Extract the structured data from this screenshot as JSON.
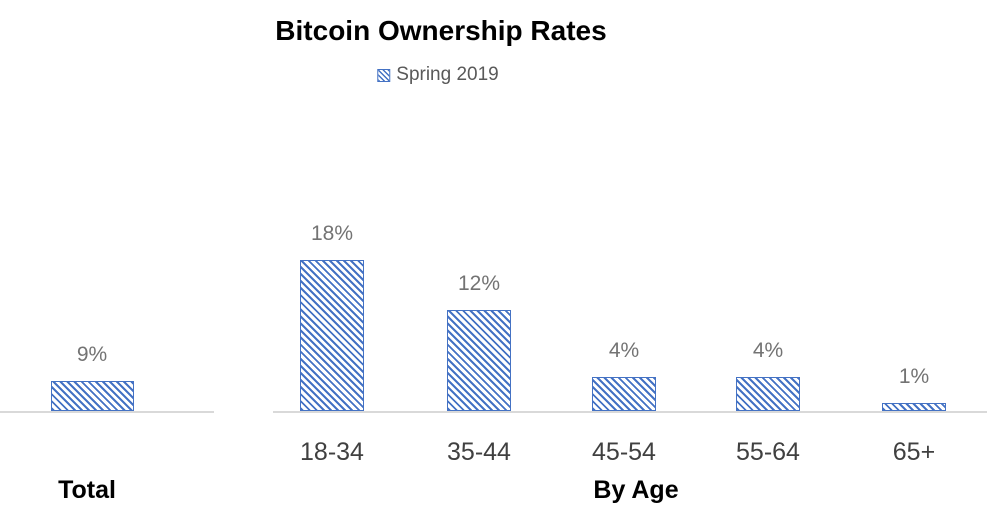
{
  "title": "Bitcoin Ownership Rates",
  "legend": {
    "label": "Spring 2019"
  },
  "chart_data": {
    "type": "bar",
    "title": "Bitcoin Ownership Rates",
    "legend_entries": [
      "Spring 2019"
    ],
    "legend_position": "top-center",
    "unit": "%",
    "bar_fill_style": "diagonal-hatch-downward",
    "y_axis_visible": false,
    "grid": false,
    "colors": {
      "bar": "#4472C4",
      "axis_line": "#D9D9D9",
      "data_label": "#737373",
      "tick_label": "#404040",
      "group_label": "#000000",
      "legend_text": "#595959",
      "title": "#000000",
      "background": "#ffffff"
    },
    "groups": [
      {
        "label": "Total",
        "categories": [
          ""
        ],
        "values": [
          9
        ],
        "data_labels": [
          "9%"
        ]
      },
      {
        "label": "By Age",
        "categories": [
          "18-34",
          "35-44",
          "45-54",
          "55-64",
          "65+"
        ],
        "values": [
          18,
          12,
          4,
          4,
          1
        ],
        "data_labels": [
          "18%",
          "12%",
          "4%",
          "4%",
          "1%"
        ]
      }
    ]
  }
}
